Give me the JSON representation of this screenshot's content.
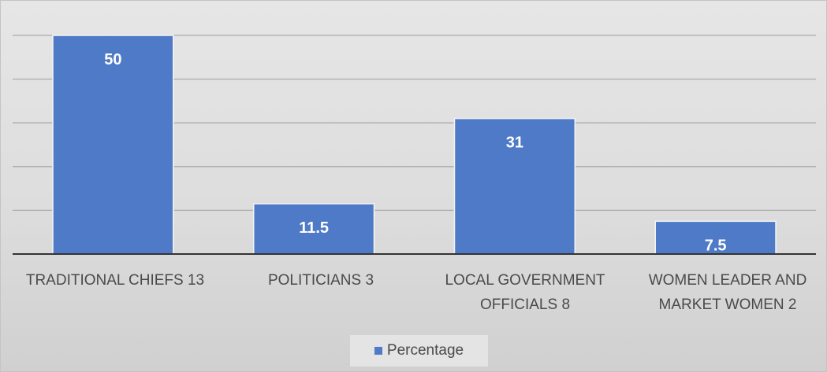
{
  "chart_data": {
    "type": "bar",
    "categories": [
      "TRADITIONAL CHIEFS  13",
      "POLITICIANS  3",
      "LOCAL GOVERNMENT\nOFFICIALS 8",
      "WOMEN LEADER AND\nMARKET WOMEN  2"
    ],
    "series": [
      {
        "name": "Percentage",
        "values": [
          50,
          11.5,
          31,
          7.5
        ],
        "color": "#4f7ac7"
      }
    ],
    "ylim": [
      0,
      50
    ],
    "y_gridlines": [
      0,
      10,
      20,
      30,
      40,
      50
    ],
    "grid": true,
    "y_tick_labels_shown": false,
    "data_labels": true,
    "legend_position": "bottom"
  }
}
